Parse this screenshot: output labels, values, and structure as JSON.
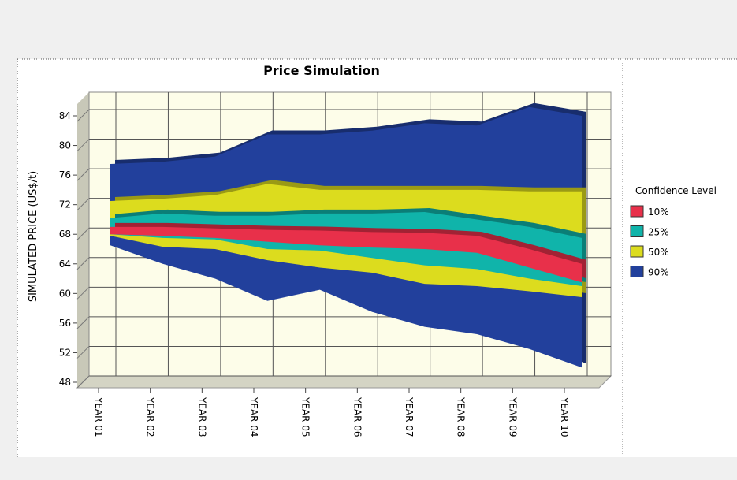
{
  "chart_data": {
    "type": "band",
    "title": "Price Simulation",
    "y_label": "SIMULATED PRICE (US$/t)",
    "legend_title": "Confidence Level",
    "legend": "right",
    "grid": true,
    "categories": [
      "YEAR 01",
      "YEAR 02",
      "YEAR 03",
      "YEAR 04",
      "YEAR 05",
      "YEAR 06",
      "YEAR 07",
      "YEAR 08",
      "YEAR 09",
      "YEAR 10"
    ],
    "ylim": [
      48,
      84
    ],
    "yticks": [
      48,
      52,
      56,
      60,
      64,
      68,
      72,
      76,
      80,
      84
    ],
    "series": [
      {
        "name": "10%",
        "color": "#e8304a",
        "high": [
          69,
          69,
          68.8,
          68.6,
          68.5,
          68.3,
          68.2,
          67.8,
          66,
          64
        ],
        "low": [
          68,
          67.8,
          67.5,
          67,
          66.5,
          66.2,
          66,
          65.5,
          63.5,
          61.5
        ]
      },
      {
        "name": "25%",
        "color": "#10b4aa",
        "high": [
          70.2,
          70.8,
          70.5,
          70.5,
          70.8,
          70.8,
          71,
          70,
          69,
          67.5
        ],
        "low": [
          68,
          67.5,
          67.3,
          66,
          65.8,
          64.8,
          63.8,
          63.3,
          62,
          61
        ]
      },
      {
        "name": "50%",
        "color": "#dcdc1e",
        "high": [
          72.5,
          72.8,
          73.3,
          74.8,
          74,
          74,
          74,
          74,
          73.8,
          73.8
        ],
        "low": [
          67.8,
          66.3,
          66,
          64.5,
          63.5,
          62.8,
          61.3,
          61,
          60.3,
          59.5
        ]
      },
      {
        "name": "90%",
        "color": "#22409c",
        "high": [
          77.5,
          77.8,
          78.5,
          81.5,
          81.5,
          82,
          83,
          82.7,
          85.2,
          84
        ],
        "low": [
          66.5,
          64,
          62,
          59,
          60.5,
          57.5,
          55.5,
          54.5,
          52.5,
          50
        ]
      }
    ]
  }
}
